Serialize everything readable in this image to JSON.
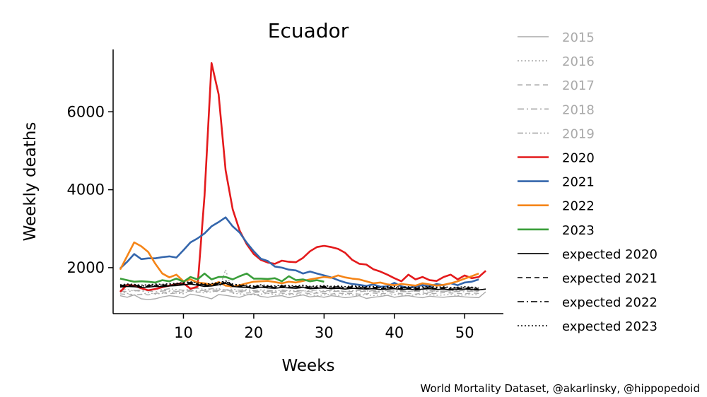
{
  "chart_data": {
    "type": "line",
    "title": "Ecuador",
    "xlabel": "Weeks",
    "ylabel": "Weekly deaths",
    "xlim": [
      0,
      55.5
    ],
    "ylim": [
      820,
      7600
    ],
    "xticks": [
      10,
      20,
      30,
      40,
      50
    ],
    "yticks": [
      2000,
      4000,
      6000
    ],
    "grid": false,
    "legend_position": "outside-right",
    "credit": "World Mortality Dataset, @akarlinsky, @hippopedoid",
    "colors": {
      "past": "#aaaaaa",
      "2020": "#e41a1c",
      "2021": "#3466ac",
      "2022": "#f58518",
      "2023": "#3a9e3a",
      "expected": "#000000"
    },
    "series": [
      {
        "name": "2015",
        "style": "solid",
        "color": "#aaaaaa",
        "width": 1.4,
        "values": [
          1280,
          1240,
          1300,
          1200,
          1180,
          1200,
          1250,
          1280,
          1260,
          1230,
          1320,
          1290,
          1250,
          1200,
          1310,
          1290,
          1260,
          1240,
          1300,
          1330,
          1260,
          1240,
          1270,
          1280,
          1230,
          1270,
          1300,
          1250,
          1270,
          1240,
          1280,
          1260,
          1230,
          1250,
          1280,
          1210,
          1240,
          1260,
          1290,
          1240,
          1270,
          1280,
          1250,
          1230,
          1270,
          1250,
          1240,
          1260,
          1270,
          1250,
          1240,
          1230,
          1380
        ]
      },
      {
        "name": "2016",
        "style": "dotted",
        "color": "#aaaaaa",
        "width": 1.4,
        "values": [
          1380,
          1340,
          1300,
          1310,
          1360,
          1320,
          1340,
          1390,
          1350,
          1330,
          1420,
          1380,
          1350,
          1380,
          1400,
          1950,
          1340,
          1330,
          1310,
          1300,
          1320,
          1340,
          1310,
          1330,
          1300,
          1320,
          1300,
          1310,
          1280,
          1300,
          1320,
          1290,
          1310,
          1300,
          1290,
          1310,
          1280,
          1300,
          1290,
          1310,
          1300,
          1280,
          1300,
          1320,
          1310,
          1290,
          1300,
          1310,
          1290,
          1300,
          1310,
          1300
        ]
      },
      {
        "name": "2017",
        "style": "dashed",
        "color": "#aaaaaa",
        "width": 1.4,
        "values": [
          1330,
          1310,
          1290,
          1320,
          1300,
          1340,
          1360,
          1330,
          1350,
          1380,
          1400,
          1370,
          1390,
          1410,
          1380,
          1400,
          1370,
          1380,
          1350,
          1360,
          1380,
          1340,
          1360,
          1350,
          1330,
          1340,
          1360,
          1330,
          1350,
          1340,
          1320,
          1350,
          1330,
          1340,
          1320,
          1330,
          1350,
          1330,
          1340,
          1360,
          1330,
          1340,
          1320,
          1350,
          1330,
          1340,
          1360,
          1350,
          1340,
          1330,
          1350,
          1340
        ]
      },
      {
        "name": "2018",
        "style": "dashdot",
        "color": "#aaaaaa",
        "width": 1.4,
        "values": [
          1400,
          1380,
          1420,
          1390,
          1410,
          1380,
          1400,
          1420,
          1390,
          1410,
          1430,
          1400,
          1420,
          1440,
          1410,
          1430,
          1400,
          1390,
          1410,
          1380,
          1400,
          1390,
          1370,
          1400,
          1380,
          1390,
          1410,
          1380,
          1370,
          1390,
          1380,
          1400,
          1370,
          1390,
          1380,
          1400,
          1390,
          1370,
          1390,
          1400,
          1380,
          1390,
          1400,
          1380,
          1370,
          1390,
          1400,
          1380,
          1390,
          1380,
          1400,
          1390
        ]
      },
      {
        "name": "2019",
        "style": "dashdotdot",
        "color": "#aaaaaa",
        "width": 1.4,
        "values": [
          1420,
          1440,
          1400,
          1430,
          1410,
          1450,
          1430,
          1460,
          1440,
          1420,
          1450,
          1470,
          1440,
          1460,
          1450,
          1430,
          1450,
          1420,
          1440,
          1410,
          1430,
          1420,
          1400,
          1430,
          1410,
          1420,
          1400,
          1410,
          1430,
          1400,
          1420,
          1410,
          1390,
          1410,
          1420,
          1400,
          1410,
          1390,
          1420,
          1400,
          1410,
          1390,
          1400,
          1420,
          1410,
          1400,
          1390,
          1410,
          1400,
          1420,
          1410,
          1400
        ]
      },
      {
        "name": "2020",
        "style": "solid",
        "color": "#e41a1c",
        "width": 2.6,
        "values": [
          1380,
          1560,
          1540,
          1470,
          1420,
          1450,
          1500,
          1540,
          1580,
          1600,
          1460,
          1510,
          3850,
          7250,
          6450,
          4500,
          3500,
          2950,
          2600,
          2350,
          2200,
          2130,
          2100,
          2180,
          2150,
          2140,
          2250,
          2420,
          2530,
          2560,
          2530,
          2480,
          2380,
          2200,
          2100,
          2080,
          1960,
          1900,
          1820,
          1730,
          1650,
          1820,
          1700,
          1760,
          1680,
          1660,
          1760,
          1820,
          1700,
          1800,
          1730,
          1760,
          1920
        ]
      },
      {
        "name": "2021",
        "style": "solid",
        "color": "#3466ac",
        "width": 2.6,
        "values": [
          1980,
          2150,
          2350,
          2220,
          2240,
          2240,
          2270,
          2290,
          2260,
          2450,
          2650,
          2750,
          2880,
          3060,
          3170,
          3290,
          3060,
          2900,
          2640,
          2420,
          2230,
          2170,
          2030,
          2000,
          1950,
          1930,
          1850,
          1900,
          1850,
          1800,
          1750,
          1680,
          1620,
          1580,
          1560,
          1530,
          1570,
          1510,
          1520,
          1610,
          1520,
          1480,
          1520,
          1550,
          1520,
          1580,
          1550,
          1600,
          1550,
          1620,
          1640,
          1700
        ]
      },
      {
        "name": "2022",
        "style": "solid",
        "color": "#f58518",
        "width": 2.6,
        "values": [
          1950,
          2300,
          2650,
          2550,
          2400,
          2100,
          1850,
          1750,
          1820,
          1650,
          1700,
          1620,
          1600,
          1560,
          1630,
          1540,
          1520,
          1550,
          1600,
          1640,
          1650,
          1660,
          1630,
          1600,
          1640,
          1620,
          1660,
          1700,
          1730,
          1760,
          1740,
          1800,
          1750,
          1720,
          1700,
          1650,
          1600,
          1620,
          1570,
          1550,
          1580,
          1560,
          1540,
          1600,
          1570,
          1540,
          1560,
          1600,
          1650,
          1720,
          1780,
          1850
        ]
      },
      {
        "name": "2023",
        "style": "solid",
        "color": "#3a9e3a",
        "width": 2.6,
        "values": [
          1720,
          1680,
          1640,
          1650,
          1640,
          1620,
          1680,
          1650,
          1720,
          1640,
          1760,
          1700,
          1850,
          1700,
          1760,
          1760,
          1700,
          1780,
          1850,
          1720,
          1720,
          1710,
          1730,
          1650,
          1780,
          1680,
          1700,
          1650,
          1680,
          1640
        ]
      },
      {
        "name": "expected 2020",
        "style": "solid",
        "color": "#000000",
        "width": 1.6,
        "values": [
          1500,
          1520,
          1510,
          1490,
          1500,
          1520,
          1510,
          1530,
          1540,
          1560,
          1580,
          1550,
          1520,
          1530,
          1560,
          1600,
          1520,
          1500,
          1490,
          1470,
          1500,
          1480,
          1470,
          1490,
          1480,
          1470,
          1490,
          1460,
          1470,
          1480,
          1460,
          1470,
          1450,
          1470,
          1460,
          1450,
          1460,
          1440,
          1450,
          1460,
          1440,
          1450,
          1430,
          1450,
          1460,
          1440,
          1450,
          1430,
          1440,
          1450,
          1440,
          1430,
          1450
        ]
      },
      {
        "name": "expected 2021",
        "style": "dashed",
        "color": "#000000",
        "width": 1.6,
        "values": [
          1520,
          1540,
          1530,
          1510,
          1520,
          1540,
          1530,
          1550,
          1560,
          1580,
          1600,
          1570,
          1540,
          1550,
          1580,
          1620,
          1540,
          1520,
          1510,
          1490,
          1520,
          1500,
          1490,
          1510,
          1500,
          1490,
          1510,
          1480,
          1490,
          1500,
          1480,
          1490,
          1470,
          1490,
          1480,
          1470,
          1480,
          1460,
          1470,
          1480,
          1460,
          1470,
          1450,
          1470,
          1480,
          1460,
          1470,
          1450,
          1460,
          1470,
          1460,
          1450
        ]
      },
      {
        "name": "expected 2022",
        "style": "dashdot",
        "color": "#000000",
        "width": 1.6,
        "values": [
          1540,
          1560,
          1550,
          1530,
          1540,
          1560,
          1550,
          1570,
          1580,
          1600,
          1620,
          1590,
          1560,
          1570,
          1600,
          1640,
          1560,
          1540,
          1530,
          1510,
          1540,
          1520,
          1510,
          1530,
          1520,
          1510,
          1530,
          1500,
          1510,
          1520,
          1500,
          1510,
          1490,
          1510,
          1500,
          1490,
          1500,
          1480,
          1490,
          1500,
          1480,
          1490,
          1470,
          1490,
          1500,
          1480,
          1490,
          1470,
          1480,
          1490,
          1480,
          1470
        ]
      },
      {
        "name": "expected 2023",
        "style": "dotted",
        "color": "#000000",
        "width": 1.6,
        "values": [
          1560,
          1580,
          1570,
          1550,
          1560,
          1580,
          1570,
          1590,
          1600,
          1620,
          1640,
          1610,
          1580,
          1590,
          1620,
          1660,
          1580,
          1560,
          1550,
          1530,
          1560,
          1540,
          1530,
          1550,
          1540,
          1530,
          1550,
          1520,
          1530,
          1540,
          1520,
          1530,
          1510,
          1530,
          1520,
          1510,
          1520,
          1500,
          1510,
          1520,
          1500,
          1510,
          1490,
          1510,
          1520,
          1500,
          1510,
          1490,
          1500,
          1510,
          1500,
          1490
        ]
      }
    ]
  }
}
